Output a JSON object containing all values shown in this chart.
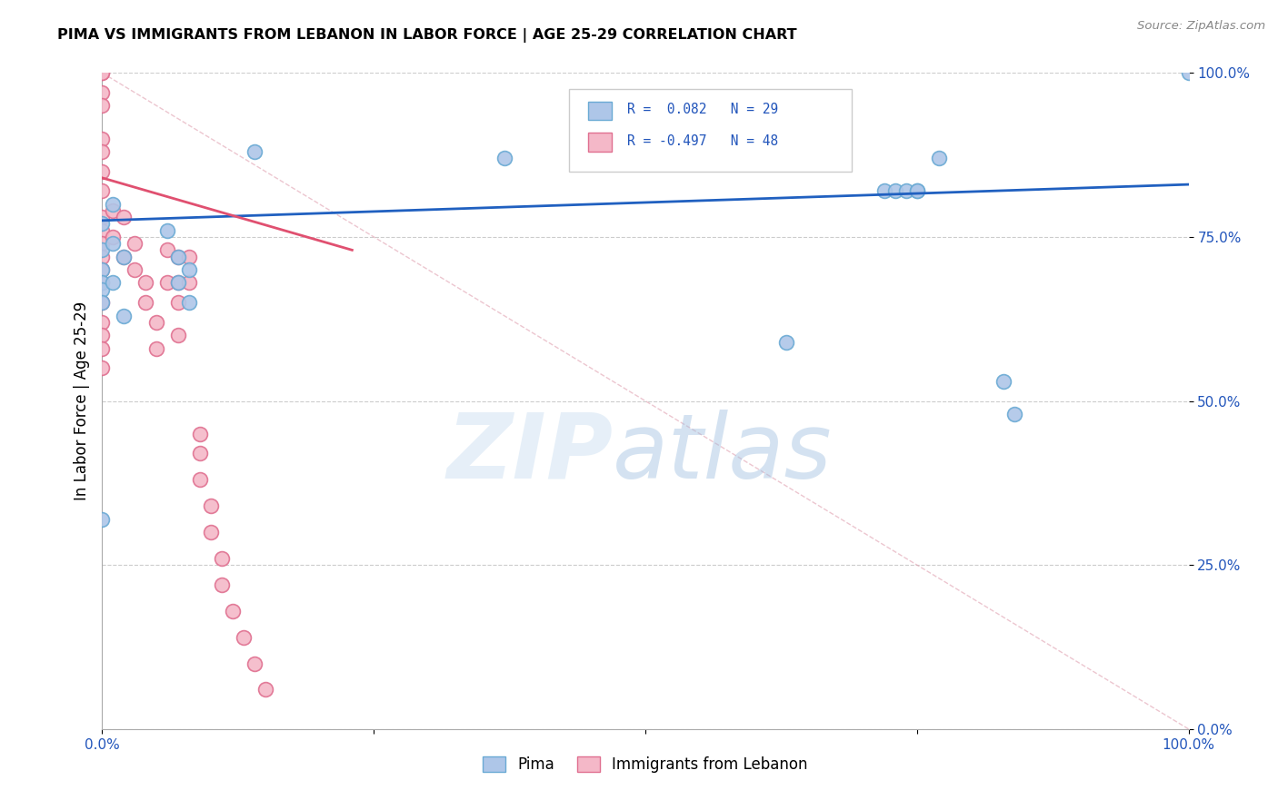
{
  "title": "PIMA VS IMMIGRANTS FROM LEBANON IN LABOR FORCE | AGE 25-29 CORRELATION CHART",
  "source": "Source: ZipAtlas.com",
  "ylabel": "In Labor Force | Age 25-29",
  "pima_color": "#aec6e8",
  "pima_edge_color": "#6aaad4",
  "lebanon_color": "#f4b8c8",
  "lebanon_edge_color": "#e07090",
  "line_pima_color": "#2060c0",
  "line_lebanon_color": "#e05070",
  "line_diag_color": "#d0d0d0",
  "legend_label_pima": "Pima",
  "legend_label_lebanon": "Immigrants from Lebanon",
  "pima_scatter_x": [
    0.0,
    0.0,
    0.0,
    0.0,
    0.0,
    0.0,
    0.0,
    0.01,
    0.01,
    0.01,
    0.02,
    0.02,
    0.06,
    0.07,
    0.07,
    0.08,
    0.08,
    0.14,
    0.37,
    0.63,
    0.72,
    0.73,
    0.74,
    0.75,
    0.75,
    0.77,
    0.83,
    0.84,
    1.0
  ],
  "pima_scatter_y": [
    0.77,
    0.73,
    0.7,
    0.68,
    0.67,
    0.65,
    0.32,
    0.8,
    0.74,
    0.68,
    0.72,
    0.63,
    0.76,
    0.72,
    0.68,
    0.7,
    0.65,
    0.88,
    0.87,
    0.59,
    0.82,
    0.82,
    0.82,
    0.82,
    0.82,
    0.87,
    0.53,
    0.48,
    1.0
  ],
  "lebanon_scatter_x": [
    0.0,
    0.0,
    0.0,
    0.0,
    0.0,
    0.0,
    0.0,
    0.0,
    0.0,
    0.0,
    0.0,
    0.0,
    0.0,
    0.0,
    0.0,
    0.0,
    0.0,
    0.0,
    0.0,
    0.01,
    0.01,
    0.02,
    0.02,
    0.03,
    0.03,
    0.04,
    0.04,
    0.05,
    0.05,
    0.06,
    0.06,
    0.07,
    0.07,
    0.07,
    0.07,
    0.08,
    0.08,
    0.09,
    0.09,
    0.09,
    0.1,
    0.1,
    0.11,
    0.11,
    0.12,
    0.13,
    0.14,
    0.15
  ],
  "lebanon_scatter_y": [
    1.0,
    1.0,
    0.97,
    0.95,
    0.9,
    0.88,
    0.85,
    0.82,
    0.78,
    0.76,
    0.74,
    0.72,
    0.7,
    0.68,
    0.65,
    0.62,
    0.6,
    0.58,
    0.55,
    0.79,
    0.75,
    0.78,
    0.72,
    0.74,
    0.7,
    0.68,
    0.65,
    0.62,
    0.58,
    0.73,
    0.68,
    0.72,
    0.68,
    0.65,
    0.6,
    0.72,
    0.68,
    0.45,
    0.42,
    0.38,
    0.34,
    0.3,
    0.26,
    0.22,
    0.18,
    0.14,
    0.1,
    0.06
  ],
  "pima_line_x": [
    0.0,
    1.0
  ],
  "pima_line_y": [
    0.775,
    0.83
  ],
  "lebanon_line_x": [
    0.0,
    0.23
  ],
  "lebanon_line_y": [
    0.84,
    0.73
  ],
  "diag_line_x": [
    0.0,
    1.0
  ],
  "diag_line_y": [
    1.0,
    0.0
  ],
  "ytick_positions": [
    0.0,
    0.25,
    0.5,
    0.75,
    1.0
  ],
  "ytick_labels": [
    "0.0%",
    "25.0%",
    "50.0%",
    "75.0%",
    "100.0%"
  ],
  "xtick_positions": [
    0.0,
    0.25,
    0.5,
    0.75,
    1.0
  ],
  "xtick_labels": [
    "0.0%",
    "",
    "",
    "",
    "100.0%"
  ]
}
